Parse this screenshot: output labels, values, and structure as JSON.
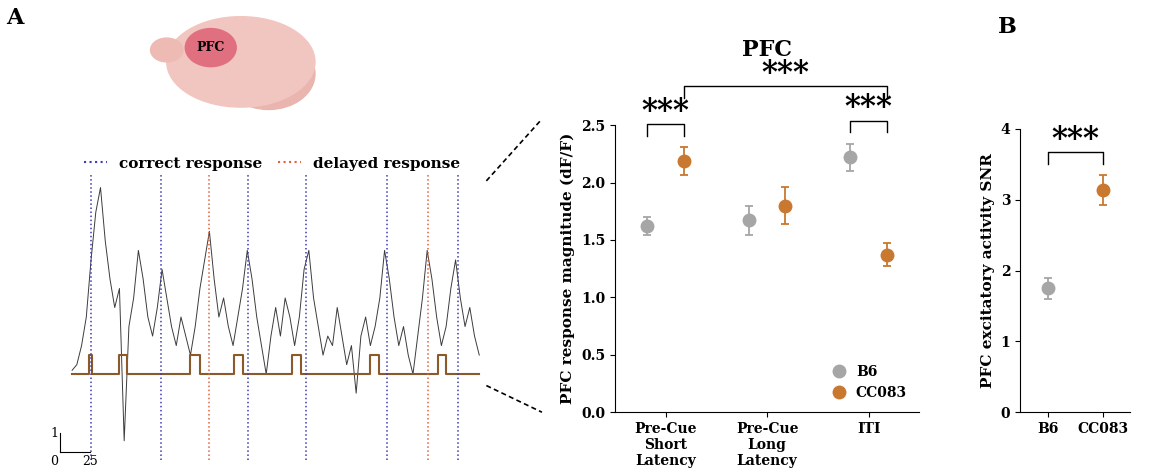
{
  "chart_data": [
    {
      "type": "line",
      "panel": "A",
      "region_label": "PFC",
      "x": [
        0,
        4,
        8,
        12,
        16,
        20,
        24,
        28,
        32,
        36,
        40,
        44,
        48,
        52,
        56,
        60,
        64,
        68,
        72,
        76,
        80,
        84,
        88,
        92,
        96,
        100,
        104,
        108,
        112,
        116,
        120,
        124,
        128,
        132,
        136,
        140,
        144,
        148,
        152,
        156,
        160,
        164,
        168,
        172,
        176,
        180,
        184,
        188,
        192,
        196,
        200,
        204,
        208,
        212,
        216,
        220,
        224,
        228,
        232,
        236,
        240,
        244,
        248,
        252,
        256,
        260,
        264,
        268,
        272,
        276,
        280,
        284,
        288,
        292,
        296,
        300,
        304,
        308,
        312,
        316,
        320,
        324,
        328,
        332,
        336,
        340,
        344
      ],
      "values": [
        0.2,
        0.5,
        1.5,
        3,
        6,
        8.5,
        9.8,
        7,
        5,
        3.5,
        4.5,
        -3.5,
        2.5,
        4,
        6.5,
        5,
        3,
        2,
        3.5,
        5.5,
        4,
        2.5,
        1.5,
        3,
        2,
        1,
        2.5,
        4.5,
        6,
        7.5,
        5,
        3,
        4,
        2.5,
        1.5,
        3,
        4.5,
        6.5,
        5,
        3,
        1.5,
        0,
        2,
        3.5,
        2,
        4,
        3,
        1.5,
        3,
        5.5,
        6.5,
        4,
        2.5,
        1,
        2,
        1.5,
        3.5,
        2,
        0.5,
        1.5,
        -1,
        2,
        3,
        1.5,
        2.5,
        4,
        6.5,
        5,
        3,
        1.5,
        2.5,
        1,
        0,
        2,
        4,
        6.5,
        5,
        3,
        1.5,
        2.5,
        4.5,
        6,
        4,
        2.5,
        3.5,
        2,
        1
      ],
      "color": "#3c3c3c",
      "xlim": [
        -12,
        350
      ],
      "ylim": [
        -4.5,
        10.5
      ],
      "tick_labels": false,
      "legend": "upper center",
      "events": [
        {
          "name": "correct response",
          "color": "#3b3bb0",
          "line_style": "dotted",
          "x": [
            16,
            75,
            149,
            198,
            266,
            326
          ]
        },
        {
          "name": "delayed response",
          "color": "#e0603a",
          "line_style": "dotted",
          "x": [
            116,
            301
          ]
        }
      ],
      "pulses": {
        "color": "#8b5a2b",
        "baseline": 0,
        "height": 1,
        "intervals": [
          [
            14,
            17
          ],
          [
            40,
            46
          ],
          [
            100,
            108
          ],
          [
            137,
            144
          ],
          [
            186,
            193
          ],
          [
            252,
            259
          ],
          [
            309,
            316
          ]
        ]
      },
      "scale_bar": {
        "origin": 0,
        "x": 25,
        "y": 1
      }
    },
    {
      "type": "scatter",
      "title": "PFC",
      "y_label": "PFC response magnitude (dF/F)",
      "categories": [
        "Pre-Cue\nShort\nLatency",
        "Pre-Cue\nLong\nLatency",
        "ITI"
      ],
      "series": [
        {
          "name": "B6",
          "color": "#a6a6a6",
          "marker": "circle",
          "values": [
            1.62,
            1.67,
            2.22
          ],
          "errors": [
            0.08,
            0.13,
            0.12
          ]
        },
        {
          "name": "CC083",
          "color": "#c8782f",
          "marker": "circle",
          "values": [
            2.19,
            1.8,
            1.37
          ],
          "errors": [
            0.12,
            0.16,
            0.1
          ]
        }
      ],
      "ylim": [
        0,
        2.5
      ],
      "yticks": [
        {
          "value": 0,
          "label": "0.0"
        },
        0.5,
        {
          "value": 1,
          "label": "1.0"
        },
        1.5,
        {
          "value": 2,
          "label": "2.0"
        },
        2.5
      ],
      "legend": "lower right",
      "significance": [
        {
          "text": "***",
          "between": [
            [
              "Pre-Cue\nShort\nLatency",
              "B6"
            ],
            [
              "Pre-Cue\nShort\nLatency",
              "CC083"
            ]
          ]
        },
        {
          "text": "***",
          "between": [
            [
              "ITI",
              "B6"
            ],
            [
              "ITI",
              "CC083"
            ]
          ]
        },
        {
          "text": "***",
          "between": [
            [
              "Pre-Cue\nShort\nLatency",
              "CC083"
            ],
            [
              "ITI",
              "CC083"
            ]
          ]
        }
      ]
    },
    {
      "type": "scatter",
      "panel": "B",
      "y_label": "PFC excitatory activity SNR",
      "categories": [
        "B6",
        "CC083"
      ],
      "values": [
        1.75,
        3.14
      ],
      "errors": [
        0.15,
        0.21
      ],
      "colors": [
        "#a6a6a6",
        "#c8782f"
      ],
      "marker": "circle",
      "ylim": [
        0,
        4
      ],
      "yticks": [
        0,
        1,
        2,
        3,
        4
      ],
      "significance": [
        {
          "text": "***",
          "between": [
            "B6",
            "CC083"
          ]
        }
      ]
    }
  ]
}
